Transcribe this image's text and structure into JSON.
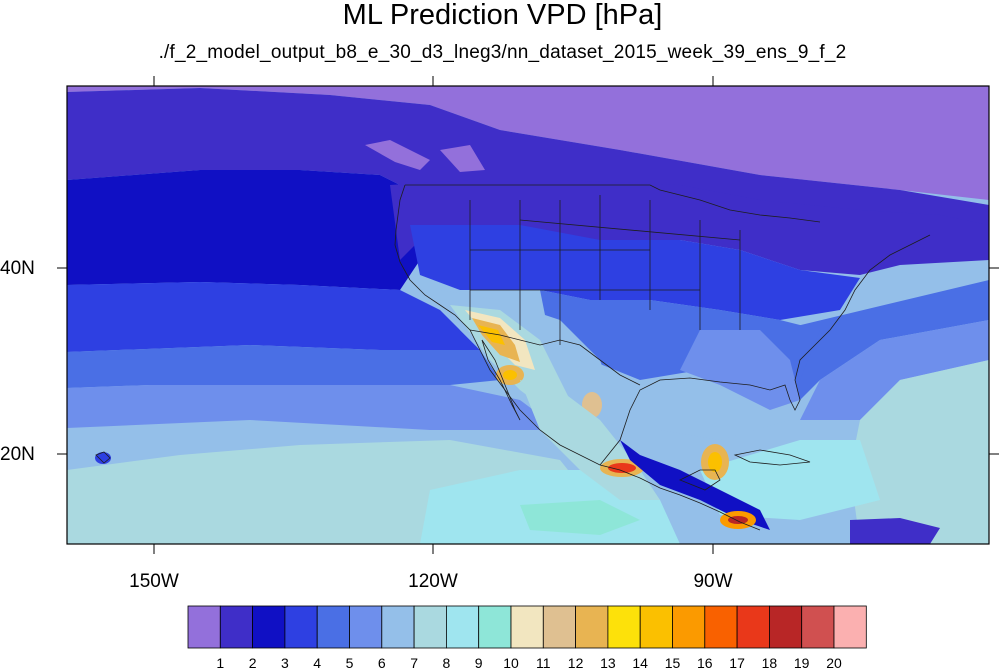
{
  "title": "ML Prediction VPD [hPa]",
  "subtitle": "./f_2_model_output_b8_e_30_d3_lneg3/nn_dataset_2015_week_39_ens_9_f_2",
  "axes": {
    "lon_labels": [
      "150W",
      "120W",
      "90W"
    ],
    "lat_labels": [
      "40N",
      "20N"
    ]
  },
  "colorbar": {
    "labels": [
      "1",
      "2",
      "3",
      "4",
      "5",
      "6",
      "7",
      "8",
      "9",
      "10",
      "11",
      "12",
      "13",
      "14",
      "15",
      "16",
      "17",
      "18",
      "19",
      "20"
    ],
    "colors": [
      "#9370db",
      "#3f2ec8",
      "#1010c4",
      "#2e40e2",
      "#4a6fe5",
      "#6e8fec",
      "#94bfe9",
      "#aad9e0",
      "#9fe5ef",
      "#8ee6d8",
      "#f2e6c0",
      "#dfc091",
      "#e8b452",
      "#fde10a",
      "#fbc000",
      "#fb9a00",
      "#f96100",
      "#e9381a",
      "#b82626",
      "#d05050",
      "#fbb0b0"
    ]
  },
  "colors": {
    "ocean_north": "#9370db",
    "coast_line": "#1e1e1e"
  }
}
